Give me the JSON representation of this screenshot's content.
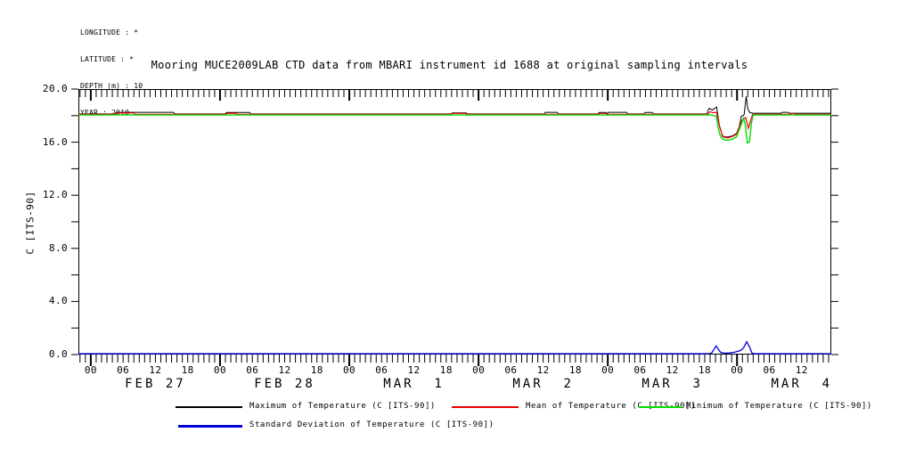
{
  "header": {
    "lines": [
      "LONGITUDE : *",
      "LATITUDE : *",
      "DEPTH (m) : 10",
      "YEAR : 2010"
    ]
  },
  "chart_data": {
    "type": "line",
    "title": "Mooring MUCE2009LAB CTD data from MBARI instrument id 1688 at original sampling intervals",
    "ylabel": "C [ITS-90]",
    "ylim": [
      0,
      20
    ],
    "y_tick_step": 2,
    "y_label_step": 4,
    "grid": false,
    "legend_position": "below",
    "x_axis": {
      "unit": "hours since 2010-02-27 00:00",
      "range": [
        -2.3,
        137.5
      ],
      "hour_tick_step": 1,
      "hour_label_step": 6,
      "hour_label_range": [
        0,
        132
      ],
      "day_labels": [
        {
          "label": "FEB 27",
          "hour": 12
        },
        {
          "label": "FEB 28",
          "hour": 36
        },
        {
          "label": "MAR  1",
          "hour": 60
        },
        {
          "label": "MAR  2",
          "hour": 84
        },
        {
          "label": "MAR  3",
          "hour": 108
        },
        {
          "label": "MAR  4",
          "hour": 132
        }
      ]
    },
    "series": [
      {
        "name": "Maximum of Temperature (C [ITS-90])",
        "color": "#000000",
        "stroke_width": 1,
        "points": [
          [
            -2.3,
            18.13
          ],
          [
            4.5,
            18.13
          ],
          [
            4.7,
            18.25
          ],
          [
            15.4,
            18.25
          ],
          [
            15.6,
            18.13
          ],
          [
            25.0,
            18.13
          ],
          [
            25.2,
            18.24
          ],
          [
            29.5,
            18.24
          ],
          [
            29.7,
            18.13
          ],
          [
            66.9,
            18.13
          ],
          [
            67.1,
            18.2
          ],
          [
            69.7,
            18.2
          ],
          [
            69.9,
            18.13
          ],
          [
            84.2,
            18.13
          ],
          [
            84.4,
            18.25
          ],
          [
            86.6,
            18.25
          ],
          [
            86.8,
            18.13
          ],
          [
            94.2,
            18.13
          ],
          [
            94.4,
            18.24
          ],
          [
            95.7,
            18.24
          ],
          [
            95.9,
            18.13
          ],
          [
            96.1,
            18.25
          ],
          [
            99.5,
            18.25
          ],
          [
            99.7,
            18.13
          ],
          [
            102.7,
            18.13
          ],
          [
            102.9,
            18.24
          ],
          [
            104.3,
            18.24
          ],
          [
            104.5,
            18.13
          ],
          [
            114.4,
            18.13
          ],
          [
            114.8,
            18.55
          ],
          [
            115.4,
            18.42
          ],
          [
            116.2,
            18.65
          ],
          [
            116.7,
            17.3
          ],
          [
            117.3,
            16.45
          ],
          [
            118.1,
            16.38
          ],
          [
            119.0,
            16.45
          ],
          [
            119.9,
            16.65
          ],
          [
            120.4,
            17.15
          ],
          [
            120.8,
            17.95
          ],
          [
            121.3,
            18.05
          ],
          [
            121.7,
            19.45
          ],
          [
            122.0,
            18.5
          ],
          [
            122.4,
            18.22
          ],
          [
            123.0,
            18.18
          ],
          [
            128.2,
            18.18
          ],
          [
            128.4,
            18.25
          ],
          [
            129.5,
            18.25
          ],
          [
            129.7,
            18.18
          ],
          [
            137.5,
            18.18
          ]
        ]
      },
      {
        "name": "Mean of Temperature (C [ITS-90])",
        "color": "#ee0000",
        "stroke_width": 1.2,
        "points": [
          [
            -2.3,
            18.1
          ],
          [
            4.6,
            18.1
          ],
          [
            4.8,
            18.2
          ],
          [
            8.0,
            18.2
          ],
          [
            8.2,
            18.1
          ],
          [
            25.1,
            18.1
          ],
          [
            25.3,
            18.18
          ],
          [
            27.0,
            18.18
          ],
          [
            27.2,
            18.1
          ],
          [
            66.9,
            18.1
          ],
          [
            67.1,
            18.17
          ],
          [
            69.6,
            18.17
          ],
          [
            69.8,
            18.1
          ],
          [
            94.3,
            18.1
          ],
          [
            94.5,
            18.17
          ],
          [
            95.6,
            18.17
          ],
          [
            95.8,
            18.1
          ],
          [
            114.6,
            18.1
          ],
          [
            115.0,
            18.3
          ],
          [
            115.5,
            18.22
          ],
          [
            116.2,
            18.25
          ],
          [
            116.8,
            17.1
          ],
          [
            117.4,
            16.4
          ],
          [
            118.2,
            16.33
          ],
          [
            119.0,
            16.4
          ],
          [
            119.9,
            16.6
          ],
          [
            120.5,
            17.25
          ],
          [
            121.0,
            17.7
          ],
          [
            121.6,
            17.85
          ],
          [
            122.1,
            17.05
          ],
          [
            122.45,
            17.55
          ],
          [
            122.9,
            18.1
          ],
          [
            129.9,
            18.1
          ],
          [
            130.1,
            18.16
          ],
          [
            130.6,
            18.16
          ],
          [
            130.8,
            18.1
          ],
          [
            137.5,
            18.1
          ]
        ]
      },
      {
        "name": "Minimum of Temperature (C [ITS-90])",
        "color": "#00dd00",
        "stroke_width": 1.4,
        "points": [
          [
            -2.3,
            18.05
          ],
          [
            115.2,
            18.05
          ],
          [
            116.1,
            17.95
          ],
          [
            116.7,
            16.7
          ],
          [
            117.2,
            16.25
          ],
          [
            118.0,
            16.15
          ],
          [
            119.0,
            16.2
          ],
          [
            119.9,
            16.4
          ],
          [
            120.7,
            17.25
          ],
          [
            121.2,
            17.8
          ],
          [
            121.5,
            17.4
          ],
          [
            121.9,
            15.95
          ],
          [
            122.3,
            16.0
          ],
          [
            122.7,
            17.5
          ],
          [
            123.0,
            18.05
          ],
          [
            137.5,
            18.05
          ]
        ]
      },
      {
        "name": "Standard Deviation of Temperature (C [ITS-90])",
        "color": "#0000dd",
        "stroke_width": 1.3,
        "points": [
          [
            -2.3,
            0.07
          ],
          [
            114.8,
            0.07
          ],
          [
            115.3,
            0.12
          ],
          [
            116.1,
            0.65
          ],
          [
            116.9,
            0.18
          ],
          [
            117.6,
            0.1
          ],
          [
            118.6,
            0.12
          ],
          [
            119.6,
            0.18
          ],
          [
            120.6,
            0.3
          ],
          [
            121.2,
            0.5
          ],
          [
            121.8,
            0.97
          ],
          [
            122.35,
            0.55
          ],
          [
            122.8,
            0.1
          ],
          [
            123.3,
            0.07
          ],
          [
            137.5,
            0.07
          ]
        ]
      }
    ]
  }
}
